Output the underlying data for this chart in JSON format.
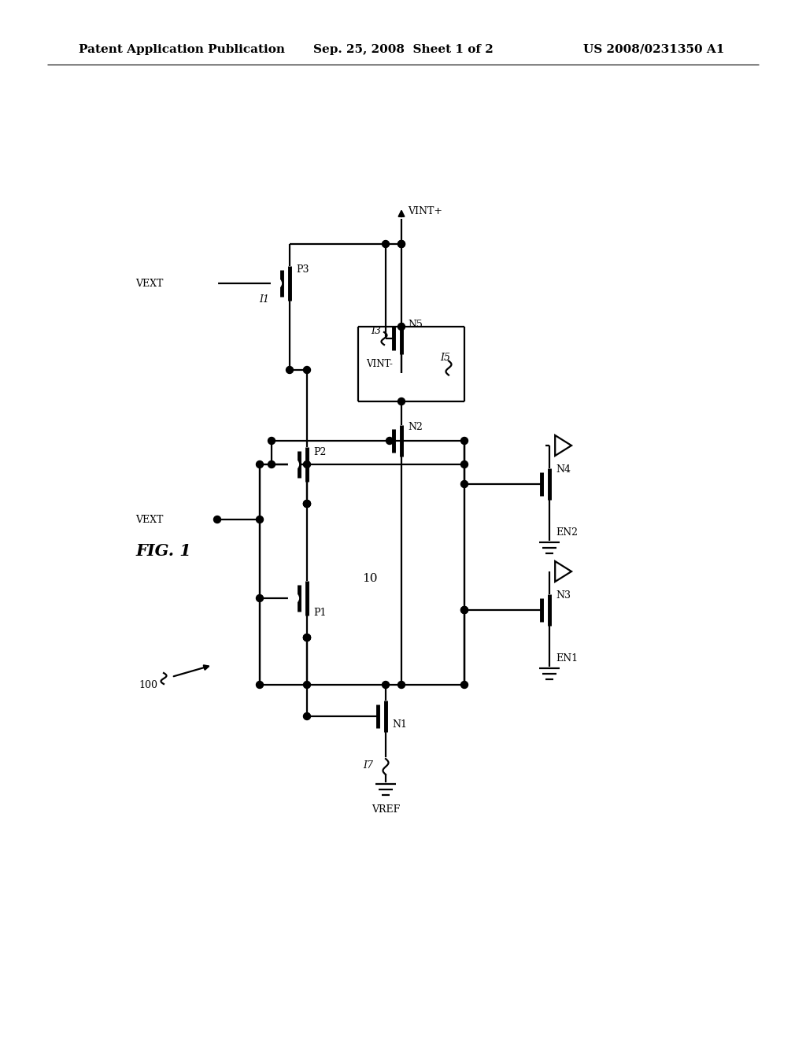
{
  "title_left": "Patent Application Publication",
  "title_mid": "Sep. 25, 2008  Sheet 1 of 2",
  "title_right": "US 2008/0231350 A1",
  "fig_label": "FIG. 1",
  "bg_color": "#ffffff",
  "line_color": "#000000",
  "line_width": 1.6
}
